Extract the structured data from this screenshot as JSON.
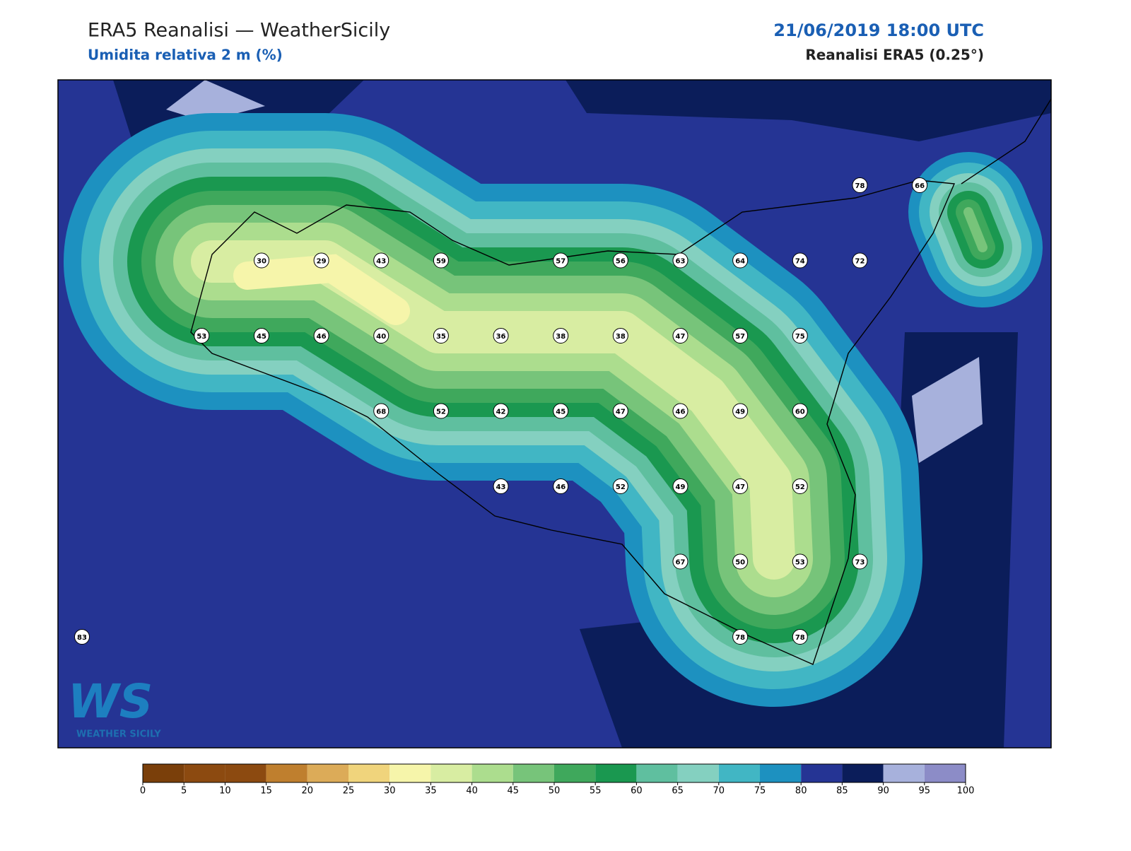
{
  "header": {
    "title": "ERA5 Reanalisi — WeatherSicily",
    "subtitle": "Umidita relativa 2 m (%)",
    "datetime": "21/06/2019 18:00 UTC",
    "source": "Reanalisi ERA5 (0.25°)"
  },
  "grid_values": [
    [
      null,
      null,
      null,
      null,
      null,
      null,
      null,
      null,
      null,
      null,
      null,
      null,
      null,
      78,
      66
    ],
    [
      null,
      null,
      null,
      30,
      29,
      43,
      59,
      null,
      57,
      56,
      63,
      64,
      74,
      72,
      null
    ],
    [
      null,
      null,
      53,
      45,
      46,
      40,
      35,
      36,
      38,
      38,
      47,
      57,
      75,
      null,
      null
    ],
    [
      null,
      null,
      null,
      null,
      null,
      68,
      52,
      42,
      45,
      47,
      46,
      49,
      60,
      null,
      null
    ],
    [
      null,
      null,
      null,
      null,
      null,
      null,
      null,
      43,
      46,
      52,
      49,
      47,
      52,
      null,
      null
    ],
    [
      null,
      null,
      null,
      null,
      null,
      null,
      null,
      null,
      null,
      null,
      67,
      50,
      53,
      73,
      null
    ],
    [
      83,
      null,
      null,
      null,
      null,
      null,
      null,
      null,
      null,
      null,
      null,
      78,
      78,
      null,
      null
    ]
  ],
  "colorbar": {
    "ticks": [
      0,
      5,
      10,
      15,
      20,
      25,
      30,
      35,
      40,
      45,
      50,
      55,
      60,
      65,
      70,
      75,
      80,
      85,
      90,
      95,
      100
    ],
    "colors": [
      "#7a3f0a",
      "#8c4a10",
      "#8c4a10",
      "#bf7f2e",
      "#dcab58",
      "#f0d47c",
      "#f6f5aa",
      "#d8eda2",
      "#acdd8e",
      "#77c47a",
      "#3fa85c",
      "#1a9850",
      "#5fbf9f",
      "#84d0c0",
      "#41b6c4",
      "#1d91c0",
      "#253494",
      "#0b1d5a",
      "#a7b1dc",
      "#8c8cc7"
    ]
  },
  "logo": {
    "mark": "WS",
    "text": "WEATHER SICILY"
  }
}
